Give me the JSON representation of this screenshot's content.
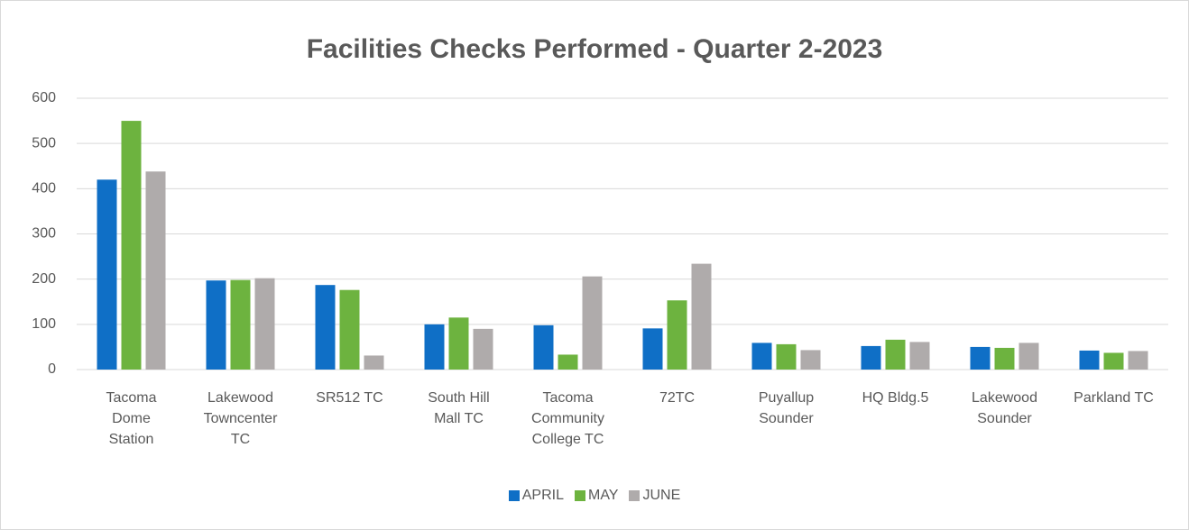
{
  "chart_data": {
    "type": "bar",
    "title": "Facilities Checks Performed - Quarter 2-2023",
    "categories": [
      "Tacoma Dome Station",
      "Lakewood Towncenter TC",
      "SR512 TC",
      "South Hill Mall TC",
      "Tacoma Community College TC",
      "72TC",
      "Puyallup Sounder",
      "HQ Bldg.5",
      "Lakewood Sounder",
      "Parkland TC"
    ],
    "series": [
      {
        "name": "APRIL",
        "color": "#0f6fc6",
        "values": [
          420,
          197,
          187,
          100,
          98,
          91,
          59,
          52,
          50,
          42
        ]
      },
      {
        "name": "MAY",
        "color": "#6db33f",
        "values": [
          550,
          198,
          176,
          115,
          33,
          153,
          56,
          66,
          48,
          37
        ]
      },
      {
        "name": "JUNE",
        "color": "#afabab",
        "values": [
          438,
          202,
          31,
          90,
          206,
          234,
          43,
          61,
          59,
          41
        ]
      }
    ],
    "ylim": [
      0,
      600
    ],
    "yticks": [
      0,
      100,
      200,
      300,
      400,
      500,
      600
    ],
    "grid": true,
    "legend": "bottom"
  }
}
